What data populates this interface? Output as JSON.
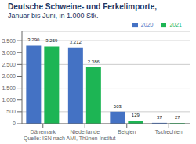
{
  "chart_data": {
    "type": "bar",
    "title": "Deutsche Schweine- und Ferkelimporte,",
    "subtitle": "Januar bis Juni, in 1.000 Stk.",
    "categories": [
      "Dänemark",
      "Niederlande",
      "Belgien",
      "Tschechien"
    ],
    "series": [
      {
        "name": "2020",
        "color": "#4472c4",
        "values": [
          3290,
          3212,
          503,
          37
        ],
        "value_labels": [
          "3.290",
          "3.212",
          "503",
          "37"
        ]
      },
      {
        "name": "2021",
        "color": "#1db554",
        "values": [
          3259,
          2386,
          129,
          27
        ],
        "value_labels": [
          "3.259",
          "2.386",
          "129",
          "27"
        ]
      }
    ],
    "ylim": [
      0,
      3900
    ],
    "yticks": [
      0,
      500,
      {
        "value": 1000,
        "label": "1.000"
      },
      {
        "value": 1500,
        "label": "1.500"
      },
      {
        "value": 2000,
        "label": "2.000"
      },
      {
        "value": 2500,
        "label": "2.500"
      },
      {
        "value": 3000,
        "label": "3.000"
      },
      {
        "value": 3500,
        "label": "3.500"
      }
    ],
    "grid": true,
    "legend": "upper right",
    "data_labels": true,
    "annotations": [
      "Quelle: ISN nach AMI, Thünen-Institut"
    ]
  }
}
